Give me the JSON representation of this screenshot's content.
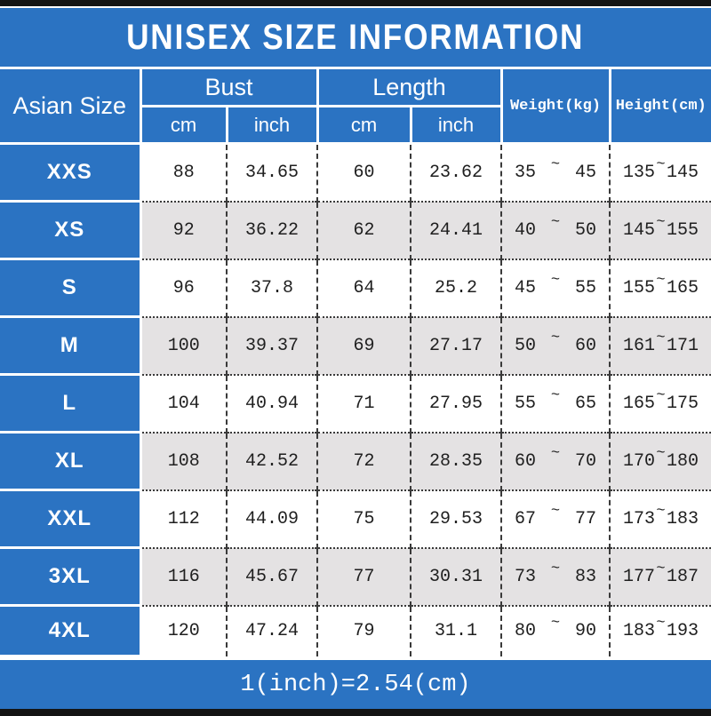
{
  "title": "UNISEX SIZE INFORMATION",
  "header": {
    "asian_size": "Asian Size",
    "bust": "Bust",
    "length": "Length",
    "weight": "Weight(kg)",
    "height": "Height(cm)",
    "cm": "cm",
    "inch": "inch"
  },
  "tilde": "~",
  "rows": [
    {
      "size": "XXS",
      "bust_cm": "88",
      "bust_inch": "34.65",
      "length_cm": "60",
      "length_inch": "23.62",
      "weight_min": "35",
      "weight_max": "45",
      "height_min": "135",
      "height_max": "145"
    },
    {
      "size": "XS",
      "bust_cm": "92",
      "bust_inch": "36.22",
      "length_cm": "62",
      "length_inch": "24.41",
      "weight_min": "40",
      "weight_max": "50",
      "height_min": "145",
      "height_max": "155"
    },
    {
      "size": "S",
      "bust_cm": "96",
      "bust_inch": "37.8",
      "length_cm": "64",
      "length_inch": "25.2",
      "weight_min": "45",
      "weight_max": "55",
      "height_min": "155",
      "height_max": "165"
    },
    {
      "size": "M",
      "bust_cm": "100",
      "bust_inch": "39.37",
      "length_cm": "69",
      "length_inch": "27.17",
      "weight_min": "50",
      "weight_max": "60",
      "height_min": "161",
      "height_max": "171"
    },
    {
      "size": "L",
      "bust_cm": "104",
      "bust_inch": "40.94",
      "length_cm": "71",
      "length_inch": "27.95",
      "weight_min": "55",
      "weight_max": "65",
      "height_min": "165",
      "height_max": "175"
    },
    {
      "size": "XL",
      "bust_cm": "108",
      "bust_inch": "42.52",
      "length_cm": "72",
      "length_inch": "28.35",
      "weight_min": "60",
      "weight_max": "70",
      "height_min": "170",
      "height_max": "180"
    },
    {
      "size": "XXL",
      "bust_cm": "112",
      "bust_inch": "44.09",
      "length_cm": "75",
      "length_inch": "29.53",
      "weight_min": "67",
      "weight_max": "77",
      "height_min": "173",
      "height_max": "183"
    },
    {
      "size": "3XL",
      "bust_cm": "116",
      "bust_inch": "45.67",
      "length_cm": "77",
      "length_inch": "30.31",
      "weight_min": "73",
      "weight_max": "83",
      "height_min": "177",
      "height_max": "187"
    },
    {
      "size": "4XL",
      "bust_cm": "120",
      "bust_inch": "47.24",
      "length_cm": "79",
      "length_inch": "31.1",
      "weight_min": "80",
      "weight_max": "90",
      "height_min": "183",
      "height_max": "193"
    }
  ],
  "footer": "1(inch)=2.54(cm)",
  "colors": {
    "blue": "#2b73c2",
    "alt_row_gray": "#e4e2e3",
    "bar_black": "#141414",
    "text_dark": "#1f1f1f"
  }
}
